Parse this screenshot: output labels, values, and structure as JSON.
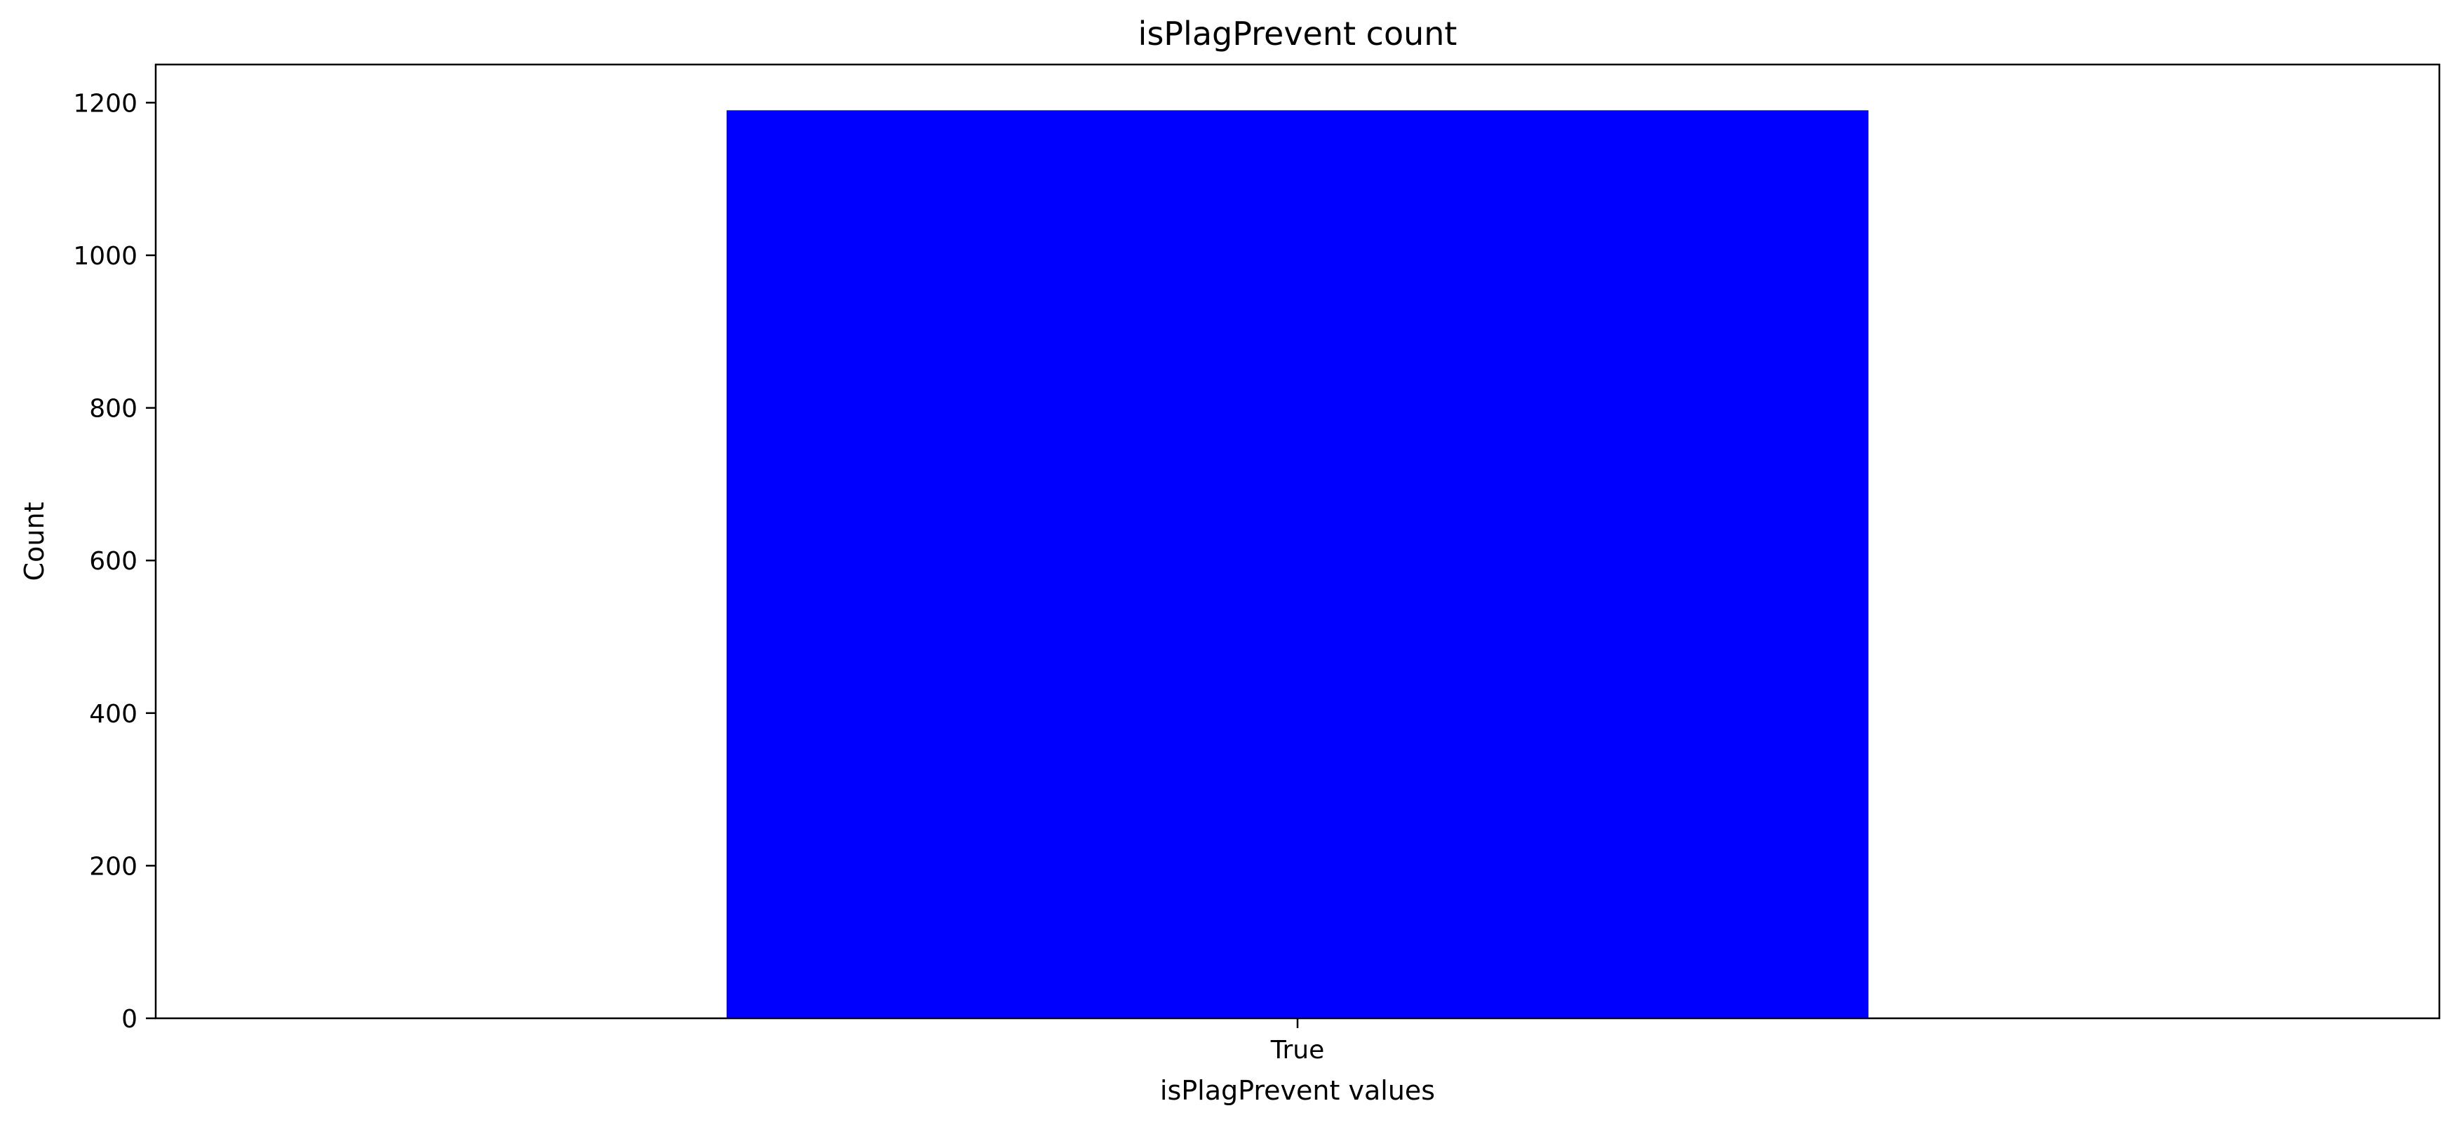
{
  "chart_data": {
    "type": "bar",
    "title": "isPlagPrevent  count",
    "xlabel": "isPlagPrevent values",
    "ylabel": "Count",
    "categories": [
      "True"
    ],
    "values": [
      1190
    ],
    "ylim": [
      0,
      1250
    ],
    "yticks": [
      0,
      200,
      400,
      600,
      800,
      1000,
      1200
    ],
    "bar_color": "#0000ff",
    "grid": false,
    "legend": "none"
  }
}
